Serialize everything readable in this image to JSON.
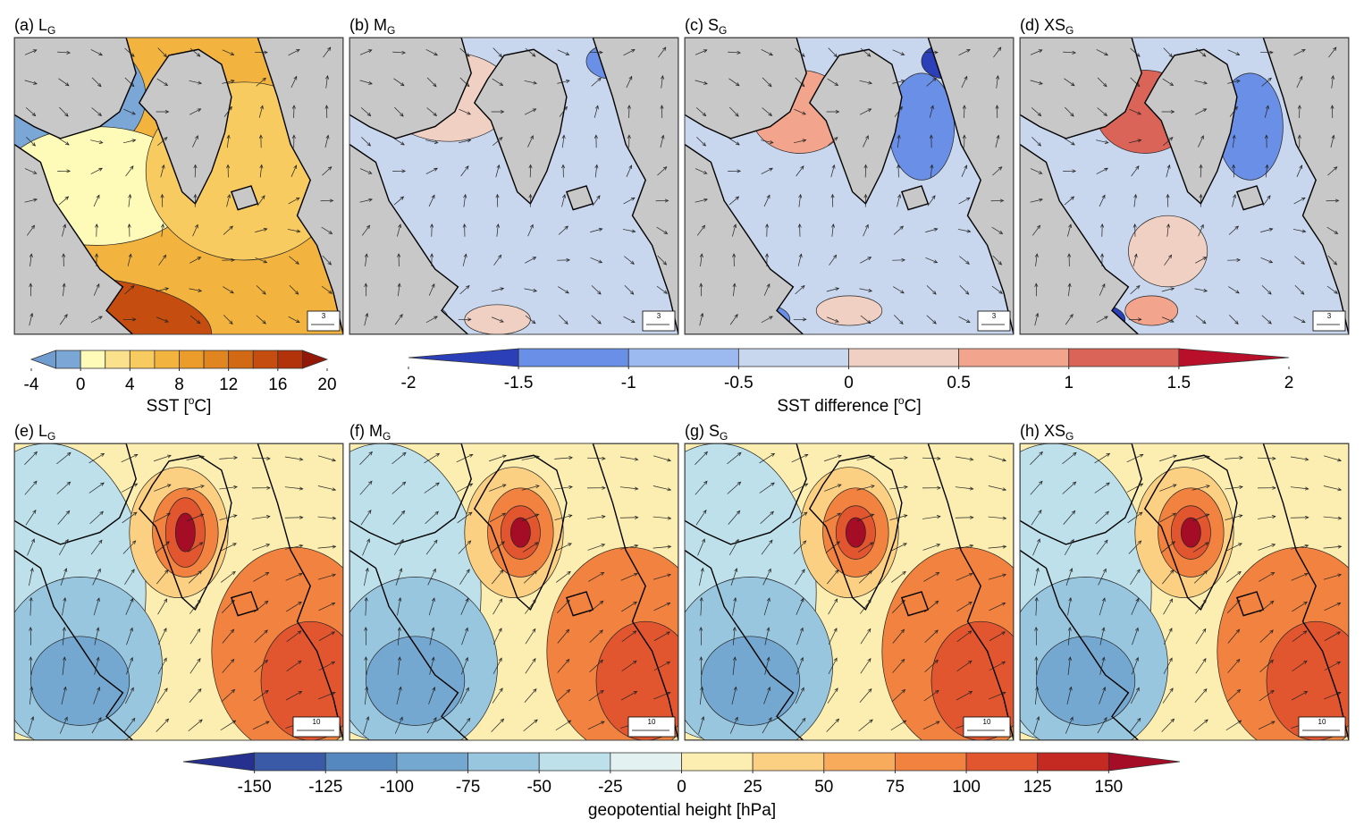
{
  "panels": [
    {
      "tag": "(a)",
      "name": "L",
      "sub": "G",
      "ref_vector": "3"
    },
    {
      "tag": "(b)",
      "name": "M",
      "sub": "G",
      "ref_vector": "3"
    },
    {
      "tag": "(c)",
      "name": "S",
      "sub": "G",
      "ref_vector": "3"
    },
    {
      "tag": "(d)",
      "name": "XS",
      "sub": "G",
      "ref_vector": "3"
    },
    {
      "tag": "(e)",
      "name": "L",
      "sub": "G",
      "ref_vector": "10"
    },
    {
      "tag": "(f)",
      "name": "M",
      "sub": "G",
      "ref_vector": "10"
    },
    {
      "tag": "(g)",
      "name": "S",
      "sub": "G",
      "ref_vector": "10"
    },
    {
      "tag": "(h)",
      "name": "XS",
      "sub": "G",
      "ref_vector": "10"
    }
  ],
  "colorbars": [
    {
      "label": {
        "text": "SST [",
        "sup": "o",
        "after": "C]"
      },
      "lim": [
        -4,
        20
      ],
      "ticks": [
        -4,
        0,
        4,
        8,
        12,
        16,
        20
      ],
      "levels": [
        -2,
        0,
        2,
        4,
        6,
        8,
        10,
        12,
        14,
        16,
        18
      ],
      "colors": [
        "#6f9dcf",
        "#7ba7d6",
        "#fefbb8",
        "#fbe18c",
        "#f8cb60",
        "#f3b43f",
        "#eb9c2b",
        "#e0851f",
        "#d26a15",
        "#c54d0f",
        "#b2320a",
        "#941808"
      ]
    },
    {
      "label": {
        "text": "SST difference [",
        "sup": "o",
        "after": "C]"
      },
      "lim": [
        -2,
        2
      ],
      "ticks": [
        -2,
        -1.5,
        -1,
        -0.5,
        0,
        0.5,
        1,
        1.5,
        2
      ],
      "levels": [
        -1.5,
        -1,
        -0.5,
        0,
        0.5,
        1,
        1.5
      ],
      "colors": [
        "#2a3fb8",
        "#6a8fe6",
        "#9dbaf0",
        "#c8d6ee",
        "#f0d0c3",
        "#f2a48c",
        "#db6458",
        "#b8102a"
      ]
    },
    {
      "label": {
        "text": "geopotential height [hPa]"
      },
      "lim": [
        -175,
        175
      ],
      "ticks": [
        -150,
        -125,
        -100,
        -75,
        -50,
        -25,
        0,
        25,
        50,
        75,
        100,
        125,
        150
      ],
      "levels": [
        -150,
        -125,
        -100,
        -75,
        -50,
        -25,
        0,
        25,
        50,
        75,
        100,
        125,
        150
      ],
      "colors": [
        "#26308f",
        "#3a5aa8",
        "#5688c0",
        "#74a8d0",
        "#98c6df",
        "#bde0eb",
        "#e4f1f1",
        "#fbeeb0",
        "#fcd082",
        "#f9ab5c",
        "#f1823f",
        "#e1552f",
        "#c52a22",
        "#a50d26"
      ]
    }
  ]
}
